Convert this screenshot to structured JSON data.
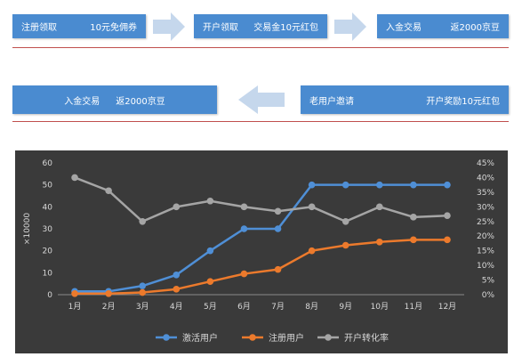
{
  "flow": {
    "row1": [
      {
        "label": "注册领取",
        "reward": "10元免佣券"
      },
      {
        "label": "开户领取",
        "reward": "交易金10元红包"
      },
      {
        "label": "入金交易",
        "reward": "返2000京豆"
      }
    ],
    "row2": [
      {
        "label": "老用户邀请",
        "reward": "开户奖励10元红包"
      },
      {
        "label": "入金交易",
        "reward": "返2000京豆"
      }
    ]
  },
  "colors": {
    "box": "#4a8bd0",
    "arrow": "#c5d7ec",
    "active": "#4f8fd6",
    "register": "#ec7a2c",
    "conversion": "#a5a5a5",
    "bg": "#3a3a3a"
  },
  "chart_data": {
    "type": "line",
    "ylabel": "×10000",
    "x": [
      "1月",
      "2月",
      "3月",
      "4月",
      "5月",
      "6月",
      "7月",
      "8月",
      "9月",
      "10月",
      "11月",
      "12月"
    ],
    "ylim": [
      0,
      60
    ],
    "yticks": [
      "0",
      "10",
      "20",
      "30",
      "40",
      "50",
      "60"
    ],
    "y2lim": [
      0,
      45
    ],
    "y2ticks": [
      "0%",
      "5%",
      "10%",
      "15%",
      "20%",
      "25%",
      "30%",
      "35%",
      "40%",
      "45%"
    ],
    "series": [
      {
        "name": "激活用户",
        "axis": "left",
        "values": [
          1.5,
          1.5,
          4,
          9,
          20,
          30,
          30,
          50,
          50,
          50,
          50,
          50
        ]
      },
      {
        "name": "注册用户",
        "axis": "left",
        "values": [
          0.5,
          0.5,
          1,
          2.5,
          6,
          9.5,
          11.5,
          20,
          22.5,
          24,
          25,
          25
        ]
      },
      {
        "name": "开户转化率",
        "axis": "right",
        "values": [
          40,
          35.5,
          25,
          30,
          32,
          30,
          28.5,
          30,
          25,
          30,
          26.5,
          27
        ]
      }
    ]
  }
}
